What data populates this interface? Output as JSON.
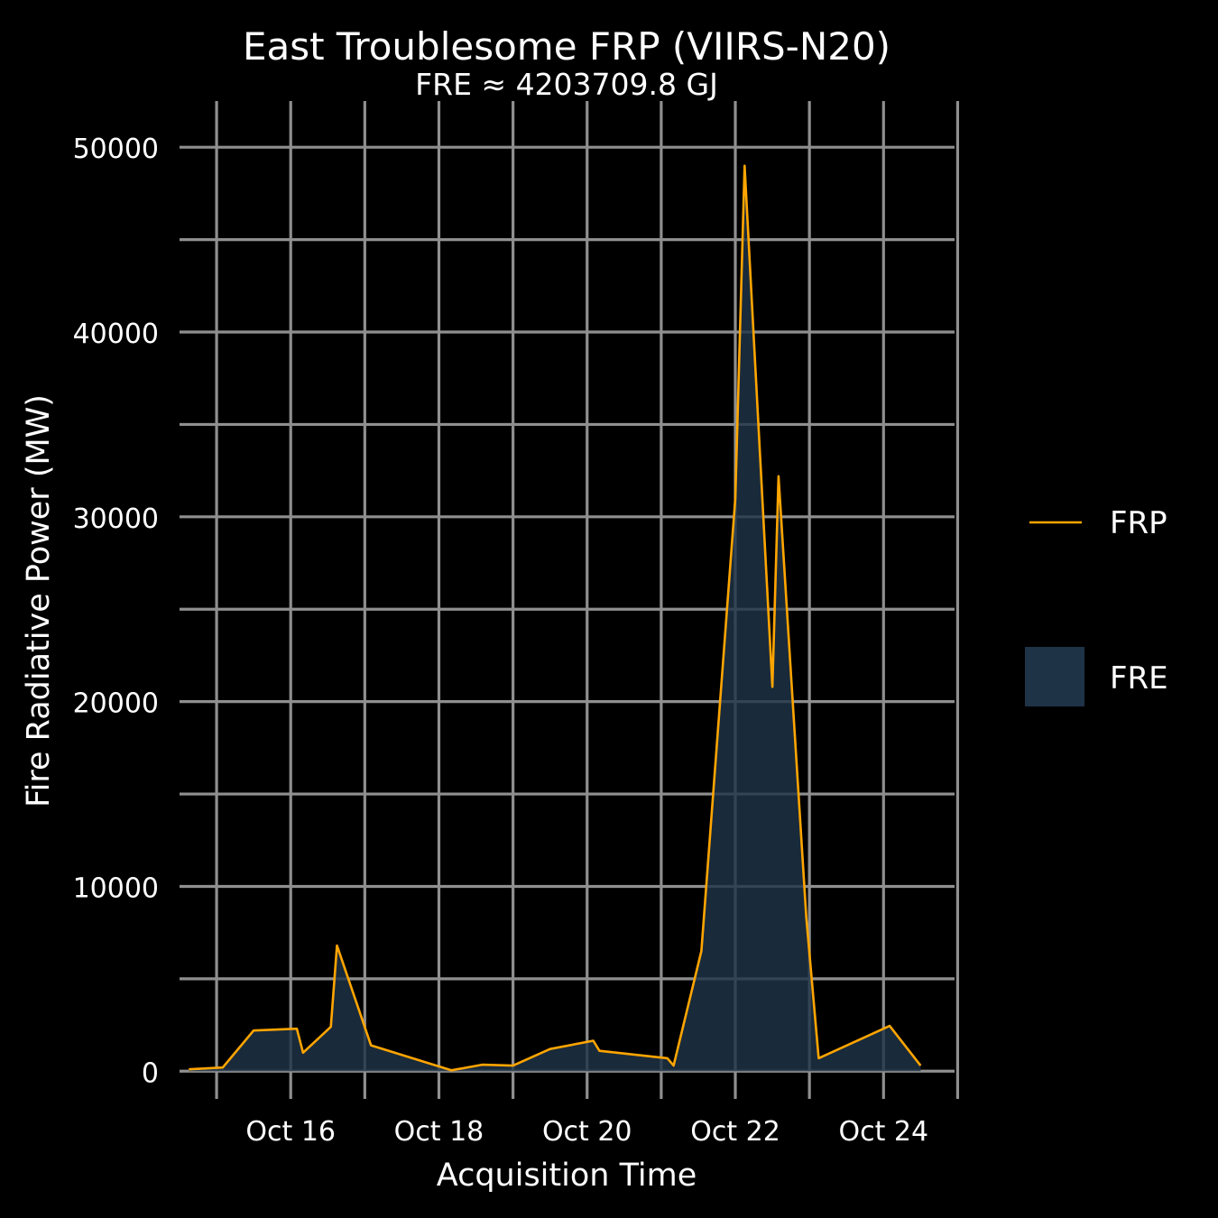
{
  "chart_data": {
    "type": "area",
    "title": "East Troublesome FRP (VIIRS-N20)",
    "subtitle": "FRE ≈ 4203709.8 GJ",
    "xlabel": "Acquisition Time",
    "ylabel": "Fire Radiative Power (MW)",
    "x_axis": "date",
    "xlim": [
      "2020-10-14T12:00",
      "2020-10-24T23:00"
    ],
    "ylim": [
      -1500,
      52500
    ],
    "x_ticks": [
      {
        "x": "2020-10-16T00:00",
        "label": "Oct 16"
      },
      {
        "x": "2020-10-18T00:00",
        "label": "Oct 18"
      },
      {
        "x": "2020-10-20T00:00",
        "label": "Oct 20"
      },
      {
        "x": "2020-10-22T00:00",
        "label": "Oct 22"
      },
      {
        "x": "2020-10-24T00:00",
        "label": "Oct 24"
      }
    ],
    "x_minor_ticks": [
      "2020-10-15T00:00",
      "2020-10-17T00:00",
      "2020-10-19T00:00",
      "2020-10-21T00:00",
      "2020-10-23T00:00",
      "2020-10-25T00:00"
    ],
    "y_ticks": [
      0,
      10000,
      20000,
      30000,
      40000,
      50000
    ],
    "y_minor_ticks": [
      5000,
      15000,
      25000,
      35000,
      45000
    ],
    "grid": true,
    "legend_position": "right",
    "colors": {
      "background": "#000000",
      "grid": "#8f8f8f",
      "line": "#ffa500",
      "fill": "#1f3347",
      "text": "#ffffff"
    },
    "series": [
      {
        "name": "FRP",
        "type": "line",
        "points": [
          {
            "x": "2020-10-14T15:00",
            "y": 100
          },
          {
            "x": "2020-10-15T02:00",
            "y": 200
          },
          {
            "x": "2020-10-15T12:00",
            "y": 2200
          },
          {
            "x": "2020-10-16T02:00",
            "y": 2300
          },
          {
            "x": "2020-10-16T04:00",
            "y": 1000
          },
          {
            "x": "2020-10-16T13:00",
            "y": 2400
          },
          {
            "x": "2020-10-16T15:00",
            "y": 6800
          },
          {
            "x": "2020-10-17T02:00",
            "y": 1400
          },
          {
            "x": "2020-10-18T04:00",
            "y": 50
          },
          {
            "x": "2020-10-18T14:00",
            "y": 350
          },
          {
            "x": "2020-10-19T00:00",
            "y": 300
          },
          {
            "x": "2020-10-19T12:00",
            "y": 1200
          },
          {
            "x": "2020-10-20T02:00",
            "y": 1650
          },
          {
            "x": "2020-10-20T04:00",
            "y": 1100
          },
          {
            "x": "2020-10-21T02:00",
            "y": 700
          },
          {
            "x": "2020-10-21T04:00",
            "y": 300
          },
          {
            "x": "2020-10-21T13:00",
            "y": 6500
          },
          {
            "x": "2020-10-22T00:00",
            "y": 31000
          },
          {
            "x": "2020-10-22T03:00",
            "y": 49000
          },
          {
            "x": "2020-10-22T12:00",
            "y": 20800
          },
          {
            "x": "2020-10-22T14:00",
            "y": 32200
          },
          {
            "x": "2020-10-22T23:00",
            "y": 8300
          },
          {
            "x": "2020-10-23T03:00",
            "y": 700
          },
          {
            "x": "2020-10-24T02:00",
            "y": 2450
          },
          {
            "x": "2020-10-24T12:00",
            "y": 300
          }
        ]
      },
      {
        "name": "FRE",
        "type": "area"
      }
    ]
  }
}
